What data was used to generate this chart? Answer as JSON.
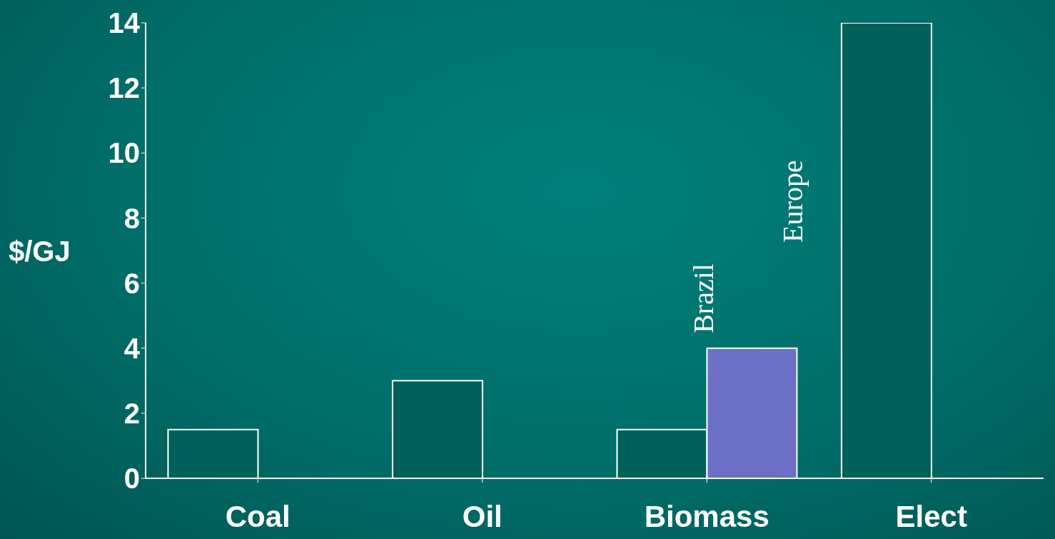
{
  "chart_data": {
    "type": "bar",
    "ylabel": "$/GJ",
    "categories": [
      "Coal",
      "Oil",
      "Biomass",
      "Elect"
    ],
    "series": [
      {
        "color": "#00615b",
        "values": [
          1.5,
          3,
          1.5,
          14
        ]
      },
      {
        "color": "#6b6fc6",
        "values": [
          null,
          null,
          4,
          null
        ]
      }
    ],
    "ylim": [
      0,
      14
    ],
    "yticks": [
      0,
      2,
      4,
      6,
      8,
      10,
      12,
      14
    ],
    "grid": false,
    "annotations": [
      "Brazil",
      "Europe"
    ]
  }
}
